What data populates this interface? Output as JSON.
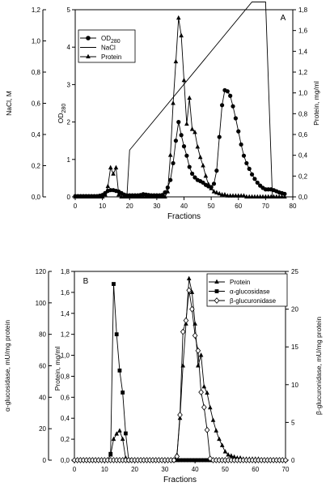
{
  "chart_data": [
    {
      "type": "line",
      "panel_label": "A",
      "xlabel": "Fractions",
      "x_ticks": [
        "0",
        "10",
        "20",
        "30",
        "40",
        "50",
        "60",
        "70",
        "80"
      ],
      "xlim": [
        0,
        80
      ],
      "axes": {
        "far_left": {
          "label": "NaCl, M",
          "ylim": [
            0,
            1.2
          ],
          "ticks": [
            "0,0",
            "0,2",
            "0,4",
            "0,6",
            "0,8",
            "1,0",
            "1,2"
          ]
        },
        "left": {
          "label": "OD",
          "label_sub": "280",
          "ylim": [
            0,
            5
          ],
          "ticks": [
            "0",
            "1",
            "2",
            "3",
            "4",
            "5"
          ]
        },
        "right": {
          "label": "Protein, mg/ml",
          "ylim": [
            0,
            1.8
          ],
          "ticks": [
            "0,0",
            "0,2",
            "0,4",
            "0,6",
            "0,8",
            "1,0",
            "1,2",
            "1,4",
            "1,6",
            "1,8"
          ]
        }
      },
      "legend": {
        "position": "top-left",
        "entries": [
          {
            "label": "OD",
            "label_sub": "280",
            "marker": "filled-circle"
          },
          {
            "label": "NaCl",
            "marker": "line"
          },
          {
            "label": "Protein",
            "marker": "filled-triangle"
          }
        ]
      },
      "series": [
        {
          "name": "OD280",
          "axis": "left",
          "marker": "circle",
          "x": [
            0,
            1,
            2,
            3,
            4,
            5,
            6,
            7,
            8,
            9,
            10,
            11,
            12,
            13,
            14,
            15,
            16,
            17,
            18,
            19,
            20,
            21,
            22,
            23,
            24,
            25,
            26,
            27,
            28,
            29,
            30,
            31,
            32,
            33,
            34,
            35,
            36,
            37,
            38,
            39,
            40,
            41,
            42,
            43,
            44,
            45,
            46,
            47,
            48,
            49,
            50,
            51,
            52,
            53,
            54,
            55,
            56,
            57,
            58,
            59,
            60,
            61,
            62,
            63,
            64,
            65,
            66,
            67,
            68,
            69,
            70,
            71,
            72,
            73,
            74,
            75,
            76,
            77
          ],
          "y": [
            0.02,
            0.02,
            0.02,
            0.02,
            0.02,
            0.02,
            0.02,
            0.02,
            0.02,
            0.03,
            0.05,
            0.1,
            0.16,
            0.18,
            0.18,
            0.16,
            0.14,
            0.1,
            0.06,
            0.04,
            0.04,
            0.04,
            0.04,
            0.04,
            0.05,
            0.07,
            0.06,
            0.05,
            0.04,
            0.04,
            0.04,
            0.04,
            0.05,
            0.12,
            0.25,
            0.45,
            0.9,
            1.5,
            2.0,
            1.65,
            1.35,
            1.1,
            0.8,
            0.62,
            0.52,
            0.45,
            0.42,
            0.38,
            0.32,
            0.28,
            0.26,
            0.35,
            0.7,
            1.6,
            2.45,
            2.85,
            2.82,
            2.7,
            2.42,
            2.1,
            1.75,
            1.4,
            1.1,
            0.9,
            0.75,
            0.6,
            0.48,
            0.38,
            0.3,
            0.24,
            0.2,
            0.2,
            0.2,
            0.18,
            0.15,
            0.12,
            0.1,
            0.08
          ]
        },
        {
          "name": "NaCl",
          "axis": "far_left",
          "marker": "none",
          "x": [
            19,
            20,
            65,
            70,
            72.5
          ],
          "y": [
            0,
            0.3,
            1.25,
            1.25,
            0
          ]
        },
        {
          "name": "Protein",
          "axis": "right",
          "marker": "triangle",
          "x": [
            0,
            1,
            2,
            3,
            4,
            5,
            6,
            7,
            8,
            9,
            10,
            11,
            12,
            13,
            14,
            15,
            16,
            17,
            18,
            19,
            20,
            21,
            22,
            23,
            24,
            25,
            26,
            27,
            28,
            29,
            30,
            31,
            32,
            33,
            34,
            35,
            36,
            37,
            38,
            39,
            40,
            41,
            42,
            43,
            44,
            45,
            46,
            47,
            48,
            49,
            50,
            51,
            52,
            53,
            54,
            55,
            56,
            57,
            58,
            59,
            60,
            61,
            62,
            63,
            64,
            65,
            66,
            67,
            68,
            69,
            70,
            71,
            72,
            73,
            74,
            75,
            76,
            77
          ],
          "y": [
            0,
            0,
            0,
            0,
            0,
            0,
            0,
            0,
            0,
            0,
            0,
            0.02,
            0.1,
            0.28,
            0.22,
            0.28,
            0.02,
            0,
            0,
            0,
            0,
            0,
            0,
            0,
            0,
            0,
            0,
            0,
            0,
            0,
            0,
            0,
            0,
            0,
            0.05,
            0.4,
            0.9,
            1.3,
            1.72,
            1.55,
            1.12,
            0.7,
            0.95,
            0.65,
            0.62,
            0.48,
            0.38,
            0.3,
            0.2,
            0.12,
            0.08,
            0.05,
            0.04,
            0.03,
            0.02,
            0.02,
            0.01,
            0.01,
            0.01,
            0.01,
            0.01,
            0.01,
            0.01,
            0,
            0,
            0,
            0,
            0,
            0,
            0,
            0,
            0,
            0,
            0,
            0,
            0,
            0,
            0
          ]
        }
      ]
    },
    {
      "type": "line",
      "panel_label": "B",
      "xlabel": "Fractions",
      "x_ticks": [
        "0",
        "10",
        "20",
        "30",
        "40",
        "50",
        "60",
        "70"
      ],
      "xlim": [
        0,
        70
      ],
      "axes": {
        "far_left": {
          "label": "α-glucosidase, mU/mg protein",
          "ylim": [
            0,
            120
          ],
          "ticks": [
            "0",
            "20",
            "40",
            "60",
            "80",
            "100",
            "120"
          ]
        },
        "left": {
          "label": "Protein, mg/ml",
          "ylim": [
            0,
            1.8
          ],
          "ticks": [
            "0,0",
            "0,2",
            "0,4",
            "0,6",
            "0,8",
            "1,0",
            "1,2",
            "1,4",
            "1,6",
            "1,8"
          ]
        },
        "right": {
          "label": "β-glucuronidase, mU/mg protein",
          "ylim": [
            0,
            25
          ],
          "ticks": [
            "0",
            "5",
            "10",
            "15",
            "20",
            "25"
          ]
        }
      },
      "legend": {
        "position": "top-right",
        "entries": [
          {
            "label": "Protein",
            "marker": "filled-triangle"
          },
          {
            "label": "α-glucosidase",
            "marker": "filled-square"
          },
          {
            "label": "β-glucuronidase",
            "marker": "open-diamond"
          }
        ]
      },
      "series": [
        {
          "name": "Protein",
          "axis": "left",
          "marker": "triangle",
          "x": [
            0,
            1,
            2,
            3,
            4,
            5,
            6,
            7,
            8,
            9,
            10,
            11,
            12,
            13,
            14,
            15,
            16,
            17,
            18,
            19,
            20,
            21,
            22,
            23,
            24,
            25,
            26,
            27,
            28,
            29,
            30,
            31,
            32,
            33,
            34,
            35,
            36,
            37,
            38,
            39,
            40,
            41,
            42,
            43,
            44,
            45,
            46,
            47,
            48,
            49,
            50,
            51,
            52,
            53,
            54,
            55,
            56,
            57,
            58,
            59,
            60,
            61,
            62,
            63,
            64,
            65,
            66,
            67,
            68,
            69,
            70
          ],
          "y": [
            0,
            0,
            0,
            0,
            0,
            0,
            0,
            0,
            0,
            0,
            0,
            0,
            0.05,
            0.2,
            0.25,
            0.28,
            0.2,
            0.02,
            0,
            0,
            0,
            0,
            0,
            0,
            0,
            0,
            0,
            0,
            0,
            0,
            0,
            0,
            0,
            0,
            0.05,
            0.4,
            0.9,
            1.3,
            1.73,
            1.6,
            1.3,
            0.9,
            1.0,
            0.7,
            0.64,
            0.5,
            0.38,
            0.28,
            0.2,
            0.14,
            0.08,
            0.05,
            0.04,
            0.03,
            0.02,
            0.02,
            0.01,
            0.01,
            0.01,
            0.01,
            0.01,
            0.01,
            0,
            0,
            0,
            0,
            0,
            0,
            0,
            0,
            0
          ]
        },
        {
          "name": "α-glucosidase",
          "axis": "far_left",
          "marker": "square",
          "x": [
            12,
            13,
            14,
            15,
            16,
            17,
            18,
            33,
            34,
            35,
            36,
            37,
            38,
            39,
            40,
            41,
            42,
            43,
            44,
            45
          ],
          "y": [
            4,
            112,
            80,
            57,
            43,
            17,
            0,
            0,
            0,
            0,
            0,
            0,
            0,
            0,
            0,
            0,
            0,
            0,
            0,
            0
          ]
        },
        {
          "name": "β-glucuronidase",
          "axis": "right",
          "marker": "diamond",
          "x": [
            0,
            1,
            2,
            3,
            4,
            5,
            6,
            7,
            8,
            9,
            10,
            11,
            12,
            13,
            14,
            15,
            16,
            17,
            18,
            19,
            20,
            21,
            22,
            23,
            24,
            25,
            26,
            27,
            28,
            29,
            30,
            31,
            32,
            33,
            34,
            35,
            36,
            37,
            38,
            39,
            40,
            41,
            42,
            43,
            44,
            45,
            46,
            47,
            48,
            49,
            50,
            51,
            52,
            53,
            54,
            55,
            56,
            57,
            58,
            59,
            60,
            61,
            62,
            63,
            64,
            65,
            66,
            67,
            68,
            69,
            70
          ],
          "y": [
            0,
            0,
            0,
            0,
            0,
            0,
            0,
            0,
            0,
            0,
            0,
            0,
            0,
            0,
            0,
            0,
            0,
            0,
            0,
            0,
            0,
            0,
            0,
            0,
            0,
            0,
            0,
            0,
            0,
            0,
            0,
            0,
            0,
            0,
            0.5,
            6,
            17,
            18.5,
            22.5,
            20,
            16.5,
            14.5,
            9,
            7,
            4,
            0.2,
            0,
            0,
            0,
            0,
            0,
            0,
            0,
            0,
            0,
            0,
            0,
            0,
            0,
            0,
            0,
            0,
            0,
            0,
            0,
            0,
            0,
            0,
            0,
            0,
            0
          ]
        }
      ]
    }
  ]
}
